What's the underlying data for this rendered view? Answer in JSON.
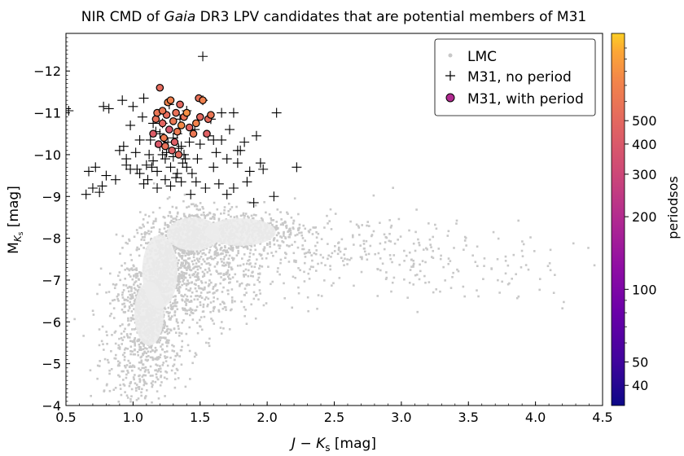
{
  "chart_data": {
    "type": "scatter",
    "title_parts": [
      "NIR CMD of ",
      "Gaia",
      " DR3 LPV candidates that are potential members of M31"
    ],
    "xlabel": "J − K",
    "xlabel_sub": "s",
    "xlabel_unit": " [mag]",
    "ylabel": "M",
    "ylabel_sub": "K",
    "ylabel_subsub": "s",
    "ylabel_unit": " [mag]",
    "xlim": [
      0.5,
      4.5
    ],
    "ylim": [
      -4,
      -12.9
    ],
    "y_inverted": true,
    "xticks": [
      0.5,
      1.0,
      1.5,
      2.0,
      2.5,
      3.0,
      3.5,
      4.0,
      4.5
    ],
    "xtick_labels": [
      "0.5",
      "1.0",
      "1.5",
      "2.0",
      "2.5",
      "3.0",
      "3.5",
      "4.0",
      "4.5"
    ],
    "yticks": [
      -4,
      -5,
      -6,
      -7,
      -8,
      -9,
      -10,
      -11,
      -12
    ],
    "ytick_labels": [
      "−4",
      "−5",
      "−6",
      "−7",
      "−8",
      "−9",
      "−10",
      "−11",
      "−12"
    ],
    "grid": false,
    "legend_position": "top-right",
    "legend": [
      {
        "label": "LMC",
        "marker": "dot"
      },
      {
        "label": "M31, no period",
        "marker": "plus"
      },
      {
        "label": "M31, with period",
        "marker": "circle"
      }
    ],
    "colorbar": {
      "label": "periodsos",
      "scale": "log",
      "range": [
        33,
        1150
      ],
      "colormap": "plasma",
      "ticks": [
        40,
        50,
        100,
        200,
        300,
        400,
        500
      ],
      "tick_labels": [
        "40",
        "50",
        "100",
        "200",
        "300",
        "400",
        "500"
      ]
    },
    "series": [
      {
        "name": "LMC",
        "color": "#c8c8c8",
        "description_points": "dense cloud",
        "density_clusters": [
          {
            "x": 1.12,
            "y": -6.2,
            "sx": 0.09,
            "sy": 0.45,
            "n": 500
          },
          {
            "x": 1.22,
            "y": -7.3,
            "sx": 0.11,
            "sy": 0.5,
            "n": 500
          },
          {
            "x": 1.45,
            "y": -8.1,
            "sx": 0.14,
            "sy": 0.3,
            "n": 500
          },
          {
            "x": 1.85,
            "y": -8.15,
            "sx": 0.22,
            "sy": 0.25,
            "n": 450
          },
          {
            "x": 1.05,
            "y": -5.0,
            "sx": 0.15,
            "sy": 0.5,
            "n": 300
          },
          {
            "x": 1.3,
            "y": -6.6,
            "sx": 0.25,
            "sy": 0.6,
            "n": 400
          },
          {
            "x": 2.6,
            "y": -7.8,
            "sx": 0.55,
            "sy": 0.45,
            "n": 260
          },
          {
            "x": 3.6,
            "y": -7.2,
            "sx": 0.45,
            "sy": 0.45,
            "n": 80
          },
          {
            "x": 1.6,
            "y": -7.2,
            "sx": 0.3,
            "sy": 0.45,
            "n": 250
          }
        ]
      },
      {
        "name": "M31, no period",
        "color": "#000000",
        "points": [
          [
            0.5,
            -11.1
          ],
          [
            0.52,
            -11.05
          ],
          [
            0.65,
            -9.05
          ],
          [
            0.67,
            -9.6
          ],
          [
            0.7,
            -9.2
          ],
          [
            0.72,
            -9.7
          ],
          [
            0.75,
            -9.1
          ],
          [
            0.77,
            -9.25
          ],
          [
            0.78,
            -11.15
          ],
          [
            0.8,
            -9.5
          ],
          [
            0.82,
            -11.1
          ],
          [
            0.87,
            -9.4
          ],
          [
            0.9,
            -10.1
          ],
          [
            0.92,
            -11.3
          ],
          [
            0.95,
            -9.9
          ],
          [
            0.98,
            -10.7
          ],
          [
            1.0,
            -11.15
          ],
          [
            1.03,
            -9.65
          ],
          [
            1.05,
            -9.55
          ],
          [
            1.07,
            -10.9
          ],
          [
            1.08,
            -9.3
          ],
          [
            1.1,
            -9.75
          ],
          [
            1.12,
            -10.0
          ],
          [
            1.13,
            -10.35
          ],
          [
            1.15,
            -9.85
          ],
          [
            1.17,
            -10.55
          ],
          [
            1.18,
            -9.6
          ],
          [
            1.2,
            -10.2
          ],
          [
            1.22,
            -10.75
          ],
          [
            1.24,
            -9.9
          ],
          [
            1.25,
            -10.05
          ],
          [
            1.27,
            -11.2
          ],
          [
            1.28,
            -9.7
          ],
          [
            1.3,
            -10.4
          ],
          [
            1.32,
            -9.45
          ],
          [
            1.34,
            -10.15
          ],
          [
            1.35,
            -10.85
          ],
          [
            1.37,
            -9.8
          ],
          [
            1.38,
            -10.0
          ],
          [
            1.4,
            -11.05
          ],
          [
            1.42,
            -10.3
          ],
          [
            1.44,
            -9.55
          ],
          [
            1.46,
            -10.6
          ],
          [
            1.48,
            -9.9
          ],
          [
            1.5,
            -10.25
          ],
          [
            1.52,
            -11.3
          ],
          [
            1.54,
            -9.2
          ],
          [
            1.56,
            -10.45
          ],
          [
            1.58,
            -10.85
          ],
          [
            1.6,
            -9.7
          ],
          [
            1.62,
            -10.05
          ],
          [
            1.64,
            -9.3
          ],
          [
            1.66,
            -11.0
          ],
          [
            1.7,
            -9.05
          ],
          [
            1.72,
            -10.6
          ],
          [
            1.75,
            -9.2
          ],
          [
            1.78,
            -9.8
          ],
          [
            1.8,
            -10.1
          ],
          [
            1.83,
            -10.3
          ],
          [
            1.87,
            -9.6
          ],
          [
            1.9,
            -8.85
          ],
          [
            1.92,
            -10.45
          ],
          [
            1.95,
            -9.8
          ],
          [
            1.97,
            -9.65
          ],
          [
            2.05,
            -9.0
          ],
          [
            2.07,
            -11.0
          ],
          [
            2.22,
            -9.7
          ],
          [
            1.08,
            -11.35
          ],
          [
            1.15,
            -10.75
          ],
          [
            1.2,
            -10.5
          ],
          [
            1.24,
            -9.4
          ],
          [
            1.28,
            -9.25
          ],
          [
            1.33,
            -9.55
          ],
          [
            1.36,
            -9.35
          ],
          [
            1.4,
            -9.7
          ],
          [
            1.43,
            -9.05
          ],
          [
            1.47,
            -9.35
          ],
          [
            1.52,
            -12.35
          ],
          [
            1.18,
            -9.2
          ],
          [
            1.11,
            -9.4
          ],
          [
            1.14,
            -9.7
          ],
          [
            1.22,
            -10.0
          ],
          [
            1.26,
            -10.3
          ],
          [
            1.3,
            -9.95
          ],
          [
            1.33,
            -10.5
          ],
          [
            1.36,
            -10.2
          ],
          [
            1.39,
            -9.9
          ],
          [
            1.05,
            -10.35
          ],
          [
            1.02,
            -10.05
          ],
          [
            0.98,
            -9.65
          ],
          [
            0.95,
            -9.75
          ],
          [
            0.93,
            -10.2
          ],
          [
            1.6,
            -10.35
          ],
          [
            1.66,
            -10.35
          ],
          [
            1.7,
            -9.9
          ],
          [
            1.75,
            -11.0
          ],
          [
            1.78,
            -10.1
          ],
          [
            1.85,
            -9.35
          ]
        ]
      },
      {
        "name": "M31, with period",
        "points": [
          [
            1.15,
            -10.5,
            420
          ],
          [
            1.17,
            -10.85,
            560
          ],
          [
            1.18,
            -11.0,
            600
          ],
          [
            1.2,
            -11.6,
            520
          ],
          [
            1.22,
            -10.75,
            480
          ],
          [
            1.23,
            -10.4,
            650
          ],
          [
            1.25,
            -10.95,
            530
          ],
          [
            1.26,
            -11.25,
            720
          ],
          [
            1.27,
            -10.6,
            380
          ],
          [
            1.28,
            -11.3,
            700
          ],
          [
            1.3,
            -10.8,
            610
          ],
          [
            1.31,
            -10.3,
            430
          ],
          [
            1.32,
            -11.0,
            560
          ],
          [
            1.33,
            -10.55,
            640
          ],
          [
            1.35,
            -11.2,
            500
          ],
          [
            1.36,
            -10.7,
            750
          ],
          [
            1.38,
            -10.9,
            590
          ],
          [
            1.4,
            -11.0,
            800
          ],
          [
            1.42,
            -10.65,
            470
          ],
          [
            1.45,
            -10.5,
            620
          ],
          [
            1.47,
            -10.75,
            710
          ],
          [
            1.49,
            -11.35,
            560
          ],
          [
            1.5,
            -10.9,
            500
          ],
          [
            1.52,
            -11.3,
            690
          ],
          [
            1.55,
            -10.5,
            450
          ],
          [
            1.56,
            -10.85,
            520
          ],
          [
            1.58,
            -10.95,
            600
          ],
          [
            1.22,
            -11.05,
            610
          ],
          [
            1.24,
            -10.2,
            560
          ],
          [
            1.29,
            -10.1,
            450
          ],
          [
            1.34,
            -10.0,
            520
          ],
          [
            1.19,
            -10.25,
            400
          ]
        ]
      }
    ]
  }
}
